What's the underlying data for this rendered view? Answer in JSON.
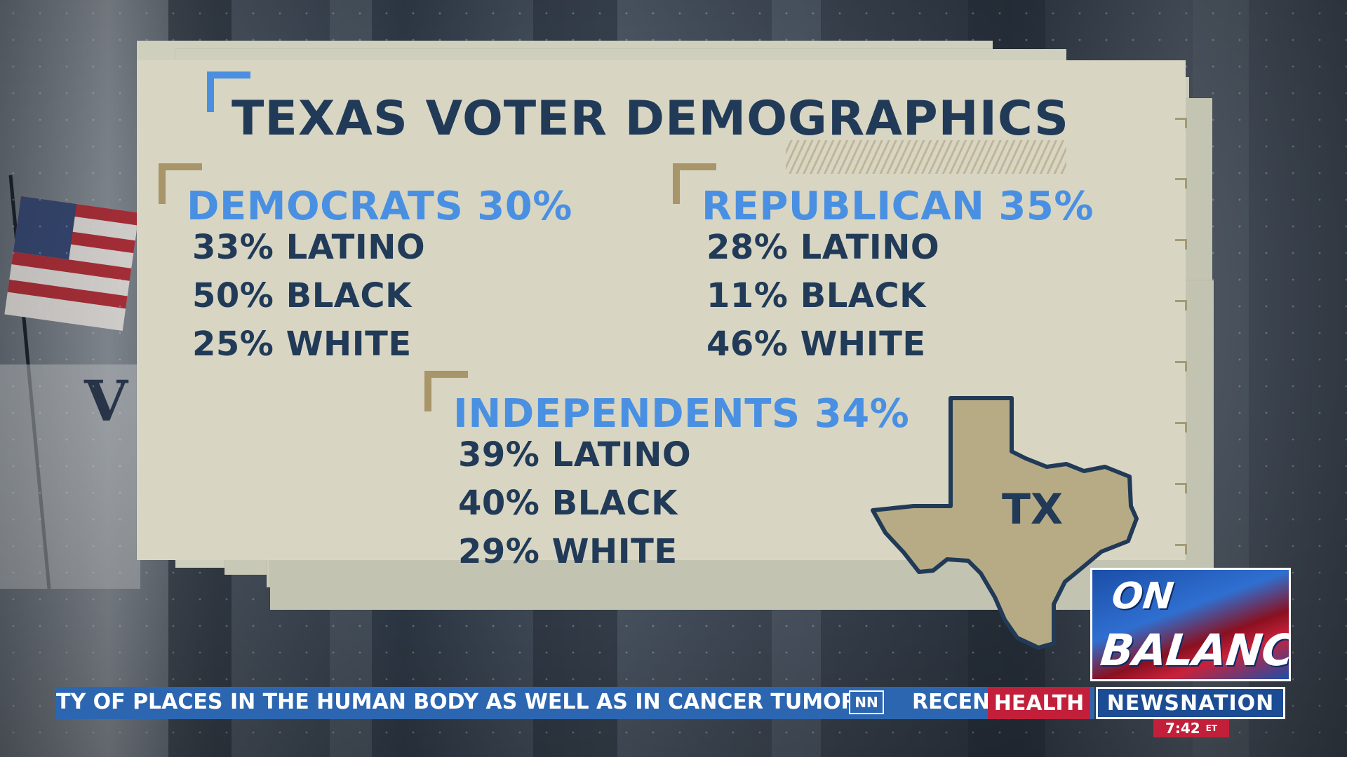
{
  "graphic": {
    "title": "TEXAS VOTER DEMOGRAPHICS",
    "groups": [
      {
        "party": "DEMOCRATS 30%",
        "stats": [
          "33% LATINO",
          "50% BLACK",
          "25% WHITE"
        ]
      },
      {
        "party": "REPUBLICAN 35%",
        "stats": [
          "28% LATINO",
          "11% BLACK",
          "46% WHITE"
        ]
      },
      {
        "party": "INDEPENDENTS 34%",
        "stats": [
          "39% LATINO",
          "40% BLACK",
          "29% WHITE"
        ]
      }
    ],
    "map_label": "TX",
    "map_icon": "texas-map-icon"
  },
  "lower_third": {
    "ticker_text": "TY OF PLACES IN THE HUMAN BODY AS WELL AS IN CANCER TUMORS",
    "nn_badge": "NN",
    "recent_text": "RECEN",
    "category": "HEALTH",
    "network": "NEWSNATION",
    "time": "7:42",
    "timezone": "ET",
    "show_on": "ON",
    "show_balance": "BALANCE"
  },
  "colors": {
    "card": "#d8d6c3",
    "title": "#213a57",
    "party": "#4a90e2",
    "accent_gold": "#a89569",
    "ticker_blue": "#2d66b0",
    "health_red": "#c2203a"
  }
}
